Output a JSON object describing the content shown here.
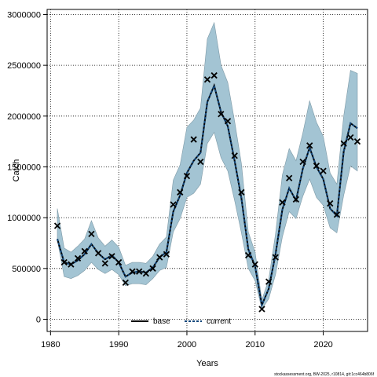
{
  "chart_data": {
    "type": "line",
    "xlabel": "Years",
    "ylabel": "Catch",
    "xlim": [
      1979.5,
      2026.5
    ],
    "ylim": [
      -120000,
      3050000
    ],
    "x_ticks": [
      1980,
      1990,
      2000,
      2010,
      2020
    ],
    "x_tick_labels": [
      "1980",
      "1990",
      "2000",
      "2010",
      "2020"
    ],
    "y_ticks": [
      0,
      500000,
      1000000,
      1500000,
      2000000,
      2500000,
      3000000
    ],
    "y_tick_labels": [
      "0",
      "500000",
      "1000000",
      "1500000",
      "2000000",
      "2500000",
      "3000000"
    ],
    "grid": true,
    "legend_position": "bottom-center",
    "footnote": "stockassessment.org, BW-2025, r10814, git:1cc464b806f",
    "colors": {
      "band": "#a3c4d3",
      "band_edge": "#7d99a6",
      "current": "#12467a",
      "base": "#000000",
      "observed": "#000000"
    },
    "years": [
      1981,
      1982,
      1983,
      1984,
      1985,
      1986,
      1987,
      1988,
      1989,
      1990,
      1991,
      1992,
      1993,
      1994,
      1995,
      1996,
      1997,
      1998,
      1999,
      2000,
      2001,
      2002,
      2003,
      2004,
      2005,
      2006,
      2007,
      2008,
      2009,
      2010,
      2011,
      2012,
      2013,
      2014,
      2015,
      2016,
      2017,
      2018,
      2019,
      2020,
      2021,
      2022,
      2023,
      2024,
      2025
    ],
    "series": [
      {
        "name": "base",
        "values": [
          790000,
          560000,
          540000,
          580000,
          640000,
          740000,
          650000,
          590000,
          630000,
          560000,
          420000,
          460000,
          470000,
          460000,
          510000,
          610000,
          660000,
          1060000,
          1220000,
          1440000,
          1560000,
          1640000,
          2140000,
          2300000,
          2040000,
          1900000,
          1560000,
          1190000,
          690000,
          520000,
          140000,
          300000,
          640000,
          1080000,
          1290000,
          1170000,
          1480000,
          1690000,
          1500000,
          1380000,
          1090000,
          1020000,
          1650000,
          1930000,
          1880000
        ]
      },
      {
        "name": "current",
        "values": [
          790000,
          560000,
          540000,
          580000,
          640000,
          740000,
          650000,
          590000,
          630000,
          560000,
          420000,
          460000,
          470000,
          460000,
          510000,
          610000,
          660000,
          1060000,
          1220000,
          1440000,
          1560000,
          1640000,
          2140000,
          2300000,
          2040000,
          1900000,
          1560000,
          1190000,
          690000,
          520000,
          140000,
          300000,
          640000,
          1080000,
          1290000,
          1170000,
          1480000,
          1690000,
          1500000,
          1380000,
          1090000,
          1020000,
          1650000,
          1930000,
          1880000
        ]
      }
    ],
    "ci_lower": [
      780000,
      420000,
      400000,
      430000,
      480000,
      560000,
      490000,
      450000,
      490000,
      440000,
      330000,
      350000,
      350000,
      340000,
      400000,
      480000,
      510000,
      860000,
      990000,
      1200000,
      1240000,
      1330000,
      1730000,
      1840000,
      1590000,
      1460000,
      1170000,
      850000,
      500000,
      380000,
      100000,
      200000,
      440000,
      810000,
      1060000,
      990000,
      1210000,
      1380000,
      1200000,
      1120000,
      900000,
      850000,
      1220000,
      1510000,
      1460000
    ],
    "ci_upper": [
      1090000,
      700000,
      660000,
      720000,
      790000,
      970000,
      800000,
      720000,
      780000,
      710000,
      530000,
      560000,
      560000,
      550000,
      620000,
      740000,
      810000,
      1370000,
      1520000,
      1890000,
      1960000,
      2080000,
      2760000,
      2920000,
      2500000,
      2330000,
      1950000,
      1530000,
      860000,
      660000,
      190000,
      390000,
      840000,
      1420000,
      1680000,
      1560000,
      1830000,
      2150000,
      1940000,
      1800000,
      1440000,
      1330000,
      2000000,
      2450000,
      2420000
    ],
    "observed": [
      920000,
      560000,
      540000,
      600000,
      670000,
      840000,
      650000,
      550000,
      620000,
      560000,
      360000,
      470000,
      470000,
      450000,
      500000,
      610000,
      640000,
      1130000,
      1250000,
      1410000,
      1770000,
      1550000,
      2360000,
      2400000,
      2020000,
      1950000,
      1610000,
      1250000,
      630000,
      540000,
      100000,
      370000,
      610000,
      1150000,
      1390000,
      1180000,
      1550000,
      1710000,
      1510000,
      1460000,
      1140000,
      1030000,
      1730000,
      1790000,
      1750000
    ]
  }
}
